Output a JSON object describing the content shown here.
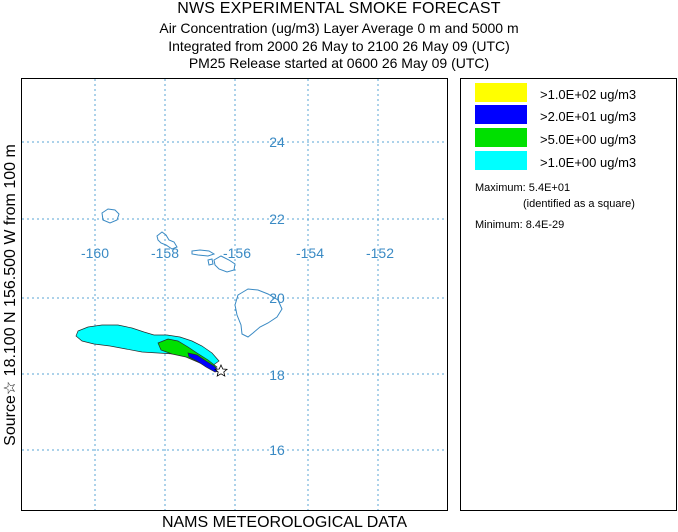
{
  "header": {
    "title": "NWS EXPERIMENTAL SMOKE FORECAST",
    "line2": "Air Concentration (ug/m3) Layer Average    0 m and  5000 m",
    "line3": "Integrated from 2000 26 May to 2100 26 May 09 (UTC)",
    "line4": "PM25 Release started at 0600 26 May 09 (UTC)"
  },
  "side_label": "Source☆ 18.100 N 156.500 W      from  100 m",
  "footer": "NAMS METEOROLOGICAL DATA",
  "map": {
    "lon_labels": [
      "-160",
      "-158",
      "-156",
      "-154",
      "-152"
    ],
    "lat_labels": [
      "24",
      "22",
      "20",
      "18",
      "16"
    ],
    "colors": {
      "grid": "#5aa5d4",
      "coast": "#3a8ac4",
      "label": "#3a8ac4"
    }
  },
  "legend": {
    "items": [
      {
        "label": ">1.0E+02 ug/m3",
        "color": "#ffff00"
      },
      {
        "label": ">2.0E+01 ug/m3",
        "color": "#0000ff"
      },
      {
        "label": ">5.0E+00 ug/m3",
        "color": "#00e000"
      },
      {
        "label": ">1.0E+00 ug/m3",
        "color": "#00ffff"
      }
    ],
    "maximum_label": "Maximum: 5.4E+01",
    "maximum_note": "(identified as a square)",
    "minimum_label": "Minimum: 8.4E-29"
  }
}
